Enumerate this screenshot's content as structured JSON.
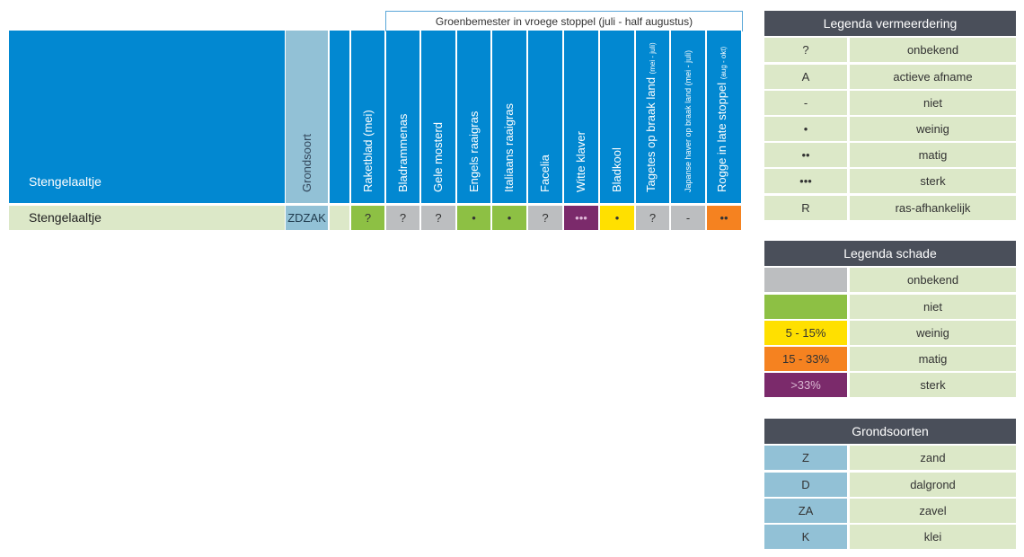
{
  "group_header": "Groenbemester in vroege stoppel (juli - half augustus)",
  "table": {
    "header_row_title": "Stengelaaltje",
    "soil_col_header": "Grondsoort",
    "columns": [
      {
        "label": "Raketblad (mei)",
        "sub": "",
        "small": false
      },
      {
        "label": "Bladrammenas",
        "sub": "",
        "small": false
      },
      {
        "label": "Gele mosterd",
        "sub": "",
        "small": false
      },
      {
        "label": "Engels raaigras",
        "sub": "",
        "small": false
      },
      {
        "label": "Italiaans raaigras",
        "sub": "",
        "small": false
      },
      {
        "label": "Facelia",
        "sub": "",
        "small": false
      },
      {
        "label": "Witte klaver",
        "sub": "",
        "small": false
      },
      {
        "label": "Bladkool",
        "sub": "",
        "small": false
      },
      {
        "label": "Tagetes op braak land ",
        "sub": "(mei - juli)",
        "small": false
      },
      {
        "label": "Japanse haver op braak land (mei - juli)",
        "sub": "",
        "small": true
      },
      {
        "label": "Rogge in late stoppel ",
        "sub": "(aug - okt)",
        "small": false
      }
    ],
    "row": {
      "label": "Stengelaaltje",
      "soil": "ZDZAK",
      "cells": [
        {
          "symbol": "?",
          "color": "#8dc044"
        },
        {
          "symbol": "?",
          "color": "#bcbec0"
        },
        {
          "symbol": "?",
          "color": "#bcbec0"
        },
        {
          "symbol": "•",
          "color": "#8dc044"
        },
        {
          "symbol": "•",
          "color": "#8dc044"
        },
        {
          "symbol": "?",
          "color": "#bcbec0"
        },
        {
          "symbol": "•••",
          "color": "#7b2a6b"
        },
        {
          "symbol": "•",
          "color": "#ffe000"
        },
        {
          "symbol": "?",
          "color": "#bcbec0"
        },
        {
          "symbol": "-",
          "color": "#bcbec0"
        },
        {
          "symbol": "••",
          "color": "#f58220"
        }
      ]
    }
  },
  "legend_vermeerdering": {
    "title": "Legenda vermeerdering",
    "items": [
      {
        "key": "?",
        "label": "onbekend"
      },
      {
        "key": "A",
        "label": "actieve afname"
      },
      {
        "key": "-",
        "label": "niet"
      },
      {
        "key": "•",
        "label": "weinig"
      },
      {
        "key": "••",
        "label": "matig"
      },
      {
        "key": "•••",
        "label": "sterk"
      },
      {
        "key": "R",
        "label": "ras-afhankelijk"
      }
    ]
  },
  "legend_schade": {
    "title": "Legenda schade",
    "items": [
      {
        "key": "",
        "label": "onbekend",
        "color": "#bcbec0"
      },
      {
        "key": "",
        "label": "niet",
        "color": "#8dc044"
      },
      {
        "key": "5 - 15%",
        "label": "weinig",
        "color": "#ffe000"
      },
      {
        "key": "15 - 33%",
        "label": "matig",
        "color": "#f58220"
      },
      {
        "key": ">33%",
        "label": "sterk",
        "color": "#7b2a6b"
      }
    ]
  },
  "legend_grondsoorten": {
    "title": "Grondsoorten",
    "items": [
      {
        "key": "Z",
        "label": "zand"
      },
      {
        "key": "D",
        "label": "dalgrond"
      },
      {
        "key": "ZA",
        "label": "zavel"
      },
      {
        "key": "K",
        "label": "klei"
      }
    ]
  },
  "colors": {
    "header_blue": "#0288d1",
    "soil_blue": "#92c1d6",
    "row_green": "#dce8c8",
    "legend_dark": "#4a4f5a"
  }
}
